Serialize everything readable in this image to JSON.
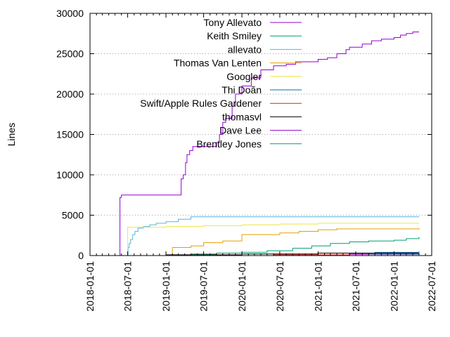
{
  "chart_data": {
    "type": "line",
    "title": "",
    "xlabel": "",
    "ylabel": "Lines",
    "ylim": [
      0,
      30000
    ],
    "xlim": [
      "2018-01-01",
      "2022-07-01"
    ],
    "x_ticks": [
      "2018-01-01",
      "2018-07-01",
      "2019-01-01",
      "2019-07-01",
      "2020-01-01",
      "2020-07-01",
      "2021-01-01",
      "2021-07-01",
      "2022-01-01",
      "2022-07-01"
    ],
    "y_ticks": [
      0,
      5000,
      10000,
      15000,
      20000,
      25000,
      30000
    ],
    "grid": "horizontal dotted",
    "legend_position": "top-center",
    "series": [
      {
        "name": "Tony Allevato",
        "color": "#9400d3",
        "points": [
          [
            "2018-05-25",
            0
          ],
          [
            "2018-05-25",
            7200
          ],
          [
            "2018-06-01",
            7200
          ],
          [
            "2018-06-01",
            7500
          ],
          [
            "2019-03-10",
            7500
          ],
          [
            "2019-03-15",
            9500
          ],
          [
            "2019-03-25",
            10000
          ],
          [
            "2019-04-05",
            11500
          ],
          [
            "2019-04-12",
            12500
          ],
          [
            "2019-04-25",
            13000
          ],
          [
            "2019-05-10",
            13500
          ],
          [
            "2019-07-01",
            13500
          ],
          [
            "2019-09-01",
            14000
          ],
          [
            "2019-09-15",
            15000
          ],
          [
            "2019-10-01",
            16500
          ],
          [
            "2019-10-15",
            17000
          ],
          [
            "2019-11-15",
            18500
          ],
          [
            "2019-12-01",
            20000
          ],
          [
            "2020-01-01",
            21000
          ],
          [
            "2020-02-15",
            22000
          ],
          [
            "2020-04-01",
            23000
          ],
          [
            "2020-06-01",
            23500
          ],
          [
            "2020-08-01",
            23700
          ],
          [
            "2020-09-15",
            24000
          ],
          [
            "2020-11-15",
            24000
          ],
          [
            "2021-01-01",
            24300
          ],
          [
            "2021-02-15",
            24500
          ],
          [
            "2021-04-01",
            25000
          ],
          [
            "2021-05-15",
            25500
          ],
          [
            "2021-06-01",
            25800
          ],
          [
            "2021-08-01",
            26200
          ],
          [
            "2021-09-15",
            26600
          ],
          [
            "2021-11-01",
            26800
          ],
          [
            "2022-01-01",
            27000
          ],
          [
            "2022-02-01",
            27300
          ],
          [
            "2022-03-01",
            27500
          ],
          [
            "2022-04-01",
            27700
          ],
          [
            "2022-05-01",
            27700
          ]
        ]
      },
      {
        "name": "Keith Smiley",
        "color": "#009e73",
        "points": [
          [
            "2019-01-01",
            0
          ],
          [
            "2019-05-01",
            200
          ],
          [
            "2019-09-01",
            300
          ],
          [
            "2020-01-01",
            400
          ],
          [
            "2020-05-01",
            600
          ],
          [
            "2020-09-01",
            900
          ],
          [
            "2020-12-01",
            1200
          ],
          [
            "2021-03-01",
            1500
          ],
          [
            "2021-06-01",
            1700
          ],
          [
            "2021-09-01",
            1800
          ],
          [
            "2022-01-01",
            1900
          ],
          [
            "2022-03-01",
            2100
          ],
          [
            "2022-05-01",
            2300
          ]
        ]
      },
      {
        "name": "allevato",
        "color": "#56b4e9",
        "points": [
          [
            "2018-06-30",
            0
          ],
          [
            "2018-07-03",
            1000
          ],
          [
            "2018-07-08",
            1500
          ],
          [
            "2018-07-15",
            2000
          ],
          [
            "2018-07-25",
            2600
          ],
          [
            "2018-08-05",
            3000
          ],
          [
            "2018-08-20",
            3400
          ],
          [
            "2018-09-15",
            3600
          ],
          [
            "2018-10-15",
            3800
          ],
          [
            "2018-11-15",
            4000
          ],
          [
            "2019-01-01",
            4200
          ],
          [
            "2019-03-01",
            4500
          ],
          [
            "2019-05-01",
            4800
          ],
          [
            "2022-05-01",
            4800
          ]
        ]
      },
      {
        "name": "Thomas Van Lenten",
        "color": "#e69f00",
        "points": [
          [
            "2019-02-01",
            0
          ],
          [
            "2019-02-01",
            1000
          ],
          [
            "2019-05-01",
            1200
          ],
          [
            "2019-07-01",
            1600
          ],
          [
            "2019-10-01",
            1800
          ],
          [
            "2020-01-01",
            2600
          ],
          [
            "2020-07-01",
            2800
          ],
          [
            "2020-10-01",
            3000
          ],
          [
            "2021-01-01",
            3200
          ],
          [
            "2021-04-01",
            3300
          ],
          [
            "2022-05-01",
            3400
          ]
        ]
      },
      {
        "name": "Googler",
        "color": "#f0e442",
        "points": [
          [
            "2018-07-01",
            0
          ],
          [
            "2018-07-01",
            3500
          ],
          [
            "2019-01-01",
            3600
          ],
          [
            "2019-07-01",
            3700
          ],
          [
            "2020-01-01",
            3800
          ],
          [
            "2020-07-01",
            3900
          ],
          [
            "2021-01-01",
            4000
          ],
          [
            "2022-05-01",
            4000
          ]
        ]
      },
      {
        "name": "Thi Doãn",
        "color": "#0072b2",
        "points": [
          [
            "2021-01-01",
            0
          ],
          [
            "2021-06-01",
            300
          ],
          [
            "2021-10-01",
            400
          ],
          [
            "2022-05-01",
            500
          ]
        ]
      },
      {
        "name": "Swift/Apple Rules Gardener",
        "color": "#e51e10",
        "points": [
          [
            "2019-06-01",
            0
          ],
          [
            "2020-06-01",
            100
          ],
          [
            "2021-06-01",
            200
          ],
          [
            "2022-05-01",
            250
          ]
        ]
      },
      {
        "name": "thomasvl",
        "color": "#000000",
        "points": [
          [
            "2018-11-01",
            0
          ],
          [
            "2019-01-01",
            100
          ],
          [
            "2020-01-01",
            200
          ],
          [
            "2021-01-01",
            300
          ],
          [
            "2022-05-01",
            300
          ]
        ]
      },
      {
        "name": "Dave Lee",
        "color": "#9400d3",
        "points": [
          [
            "2020-12-01",
            0
          ],
          [
            "2021-06-01",
            150
          ],
          [
            "2022-05-01",
            250
          ]
        ]
      },
      {
        "name": "Brentley Jones",
        "color": "#009e73",
        "points": [
          [
            "2021-01-01",
            0
          ],
          [
            "2021-09-01",
            200
          ],
          [
            "2022-05-01",
            400
          ]
        ]
      }
    ]
  }
}
